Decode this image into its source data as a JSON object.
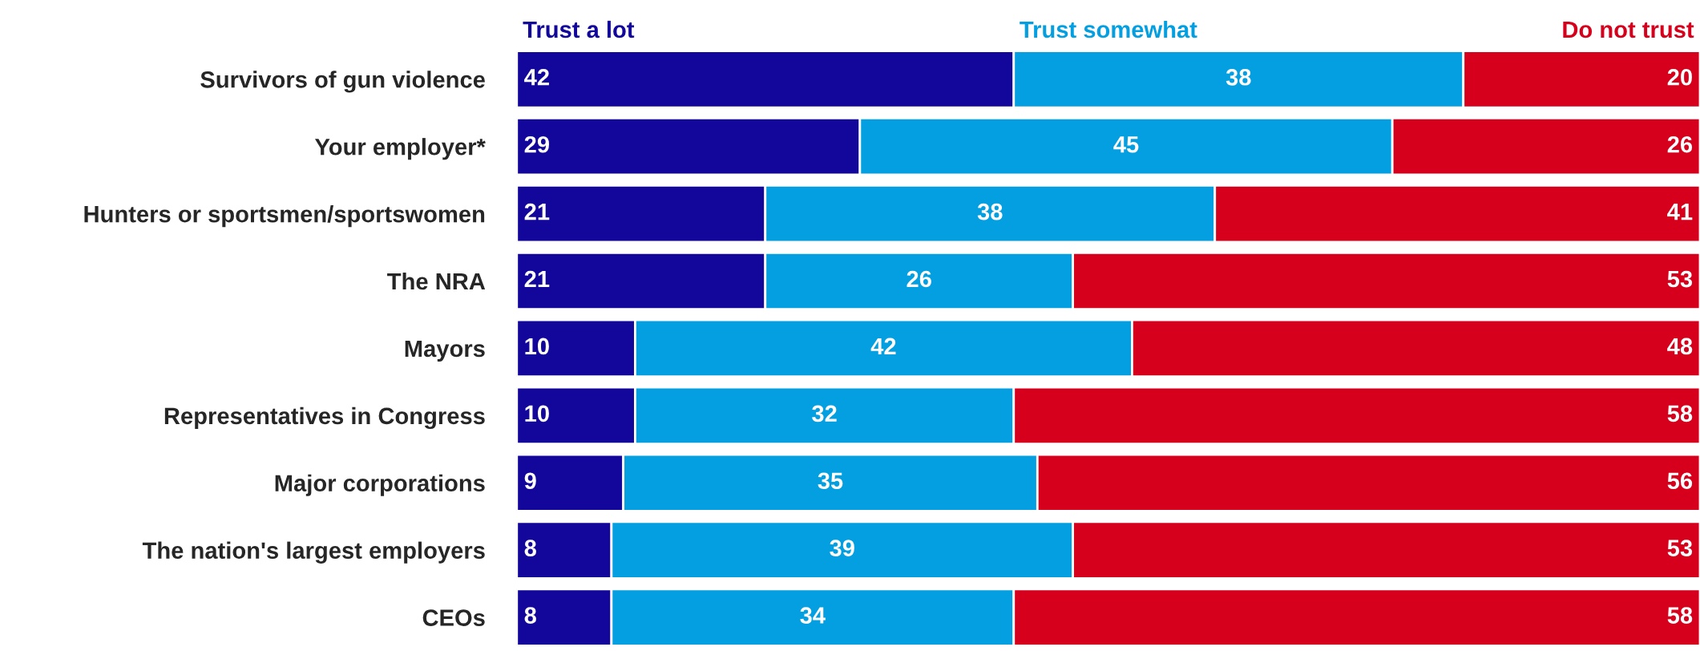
{
  "chart_data": {
    "type": "bar",
    "orientation": "horizontal",
    "stacked": true,
    "data_labels": true,
    "legend": "top",
    "tick_labels": "y",
    "grid": false,
    "xlim": [
      0,
      100
    ],
    "categories": [
      "Survivors of gun violence",
      "Your employer*",
      "Hunters or sportsmen/sportswomen",
      "The NRA",
      "Mayors",
      "Representatives in Congress",
      "Major corporations",
      "The nation's largest employers",
      "CEOs"
    ],
    "series": [
      {
        "name": "Trust a lot",
        "color": "#13079b",
        "values": [
          42,
          29,
          21,
          21,
          10,
          10,
          9,
          8,
          8
        ]
      },
      {
        "name": "Trust somewhat",
        "color": "#039fe0",
        "values": [
          38,
          45,
          38,
          26,
          42,
          32,
          35,
          39,
          34
        ]
      },
      {
        "name": "Do not trust",
        "color": "#d6001c",
        "values": [
          20,
          26,
          41,
          53,
          48,
          58,
          56,
          53,
          58
        ]
      }
    ]
  }
}
